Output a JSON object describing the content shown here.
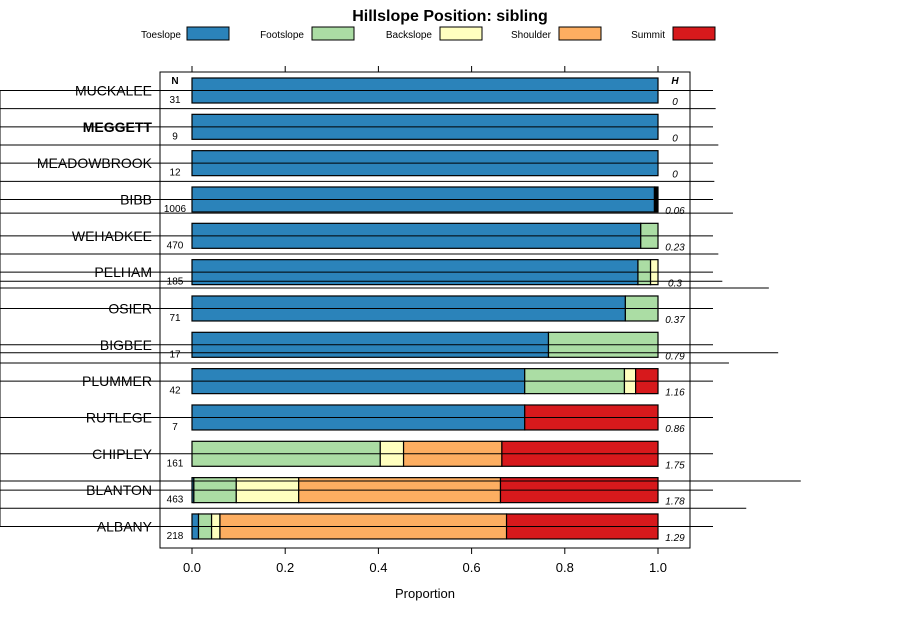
{
  "chart_data": {
    "type": "bar",
    "orientation": "horizontal",
    "stacked": true,
    "title": "Hillslope Position: sibling",
    "xlabel": "Proportion",
    "ylabel": "",
    "xlim": [
      0,
      1
    ],
    "xticks": [
      "0.0",
      "0.2",
      "0.4",
      "0.6",
      "0.8",
      "1.0"
    ],
    "n_header": "N",
    "h_header": "H",
    "highlight": "MEGGETT",
    "legend_position": "top",
    "legend": [
      {
        "name": "Toeslope",
        "color": "#2b83ba"
      },
      {
        "name": "Footslope",
        "color": "#abdda4"
      },
      {
        "name": "Backslope",
        "color": "#ffffbf"
      },
      {
        "name": "Shoulder",
        "color": "#fdae61"
      },
      {
        "name": "Summit",
        "color": "#d7191c"
      }
    ],
    "categories": [
      "MUCKALEE",
      "MEGGETT",
      "MEADOWBROOK",
      "BIBB",
      "WEHADKEE",
      "PELHAM",
      "OSIER",
      "BIGBEE",
      "PLUMMER",
      "RUTLEGE",
      "CHIPLEY",
      "BLANTON",
      "ALBANY"
    ],
    "n": [
      "31",
      "9",
      "12",
      "1006",
      "470",
      "185",
      "71",
      "17",
      "42",
      "7",
      "161",
      "463",
      "218"
    ],
    "h": [
      "0",
      "0",
      "0",
      "0.06",
      "0.23",
      "0.3",
      "0.37",
      "0.79",
      "1.16",
      "0.86",
      "1.75",
      "1.78",
      "1.29"
    ],
    "series": [
      {
        "name": "Toeslope",
        "values": [
          1.0,
          1.0,
          1.0,
          0.993,
          0.963,
          0.957,
          0.93,
          0.765,
          0.714,
          0.714,
          0.0,
          0.004,
          0.014
        ]
      },
      {
        "name": "Footslope",
        "values": [
          0.0,
          0.0,
          0.0,
          0.007,
          0.037,
          0.027,
          0.07,
          0.235,
          0.214,
          0.0,
          0.404,
          0.091,
          0.028
        ]
      },
      {
        "name": "Backslope",
        "values": [
          0.0,
          0.0,
          0.0,
          0.0,
          0.0,
          0.016,
          0.0,
          0.0,
          0.024,
          0.0,
          0.05,
          0.134,
          0.018
        ]
      },
      {
        "name": "Shoulder",
        "values": [
          0.0,
          0.0,
          0.0,
          0.0,
          0.0,
          0.0,
          0.0,
          0.0,
          0.0,
          0.0,
          0.211,
          0.433,
          0.615
        ]
      },
      {
        "name": "Summit",
        "values": [
          0.0,
          0.0,
          0.0,
          0.0,
          0.0,
          0.0,
          0.0,
          0.0,
          0.048,
          0.286,
          0.335,
          0.338,
          0.325
        ]
      }
    ],
    "dendrogram": {
      "type": "hierarchical-clustering",
      "leaves": [
        "MUCKALEE",
        "MEGGETT",
        "MEADOWBROOK",
        "BIBB",
        "WEHADKEE",
        "PELHAM",
        "OSIER",
        "BIGBEE",
        "PLUMMER",
        "RUTLEGE",
        "CHIPLEY",
        "BLANTON",
        "ALBANY"
      ],
      "merges": [
        {
          "a": 0,
          "b": 1,
          "height": 0.02
        },
        {
          "a": 2,
          "b": 3,
          "height": 0.01
        },
        {
          "a": "m1",
          "b": "m0",
          "height": 0.04
        },
        {
          "a": 4,
          "b": 5,
          "height": 0.04
        },
        {
          "a": "m3",
          "b": 6,
          "height": 0.07
        },
        {
          "a": "m2",
          "b": "m4",
          "height": 0.15
        },
        {
          "a": 7,
          "b": 8,
          "height": 0.12
        },
        {
          "a": "m5",
          "b": "m6",
          "height": 0.42
        },
        {
          "a": "m7",
          "b": 9,
          "height": 0.49
        },
        {
          "a": 11,
          "b": 12,
          "height": 0.25
        },
        {
          "a": 10,
          "b": "m9",
          "height": 0.66
        },
        {
          "a": "m8",
          "b": "m10",
          "height": 1.34
        }
      ]
    }
  }
}
